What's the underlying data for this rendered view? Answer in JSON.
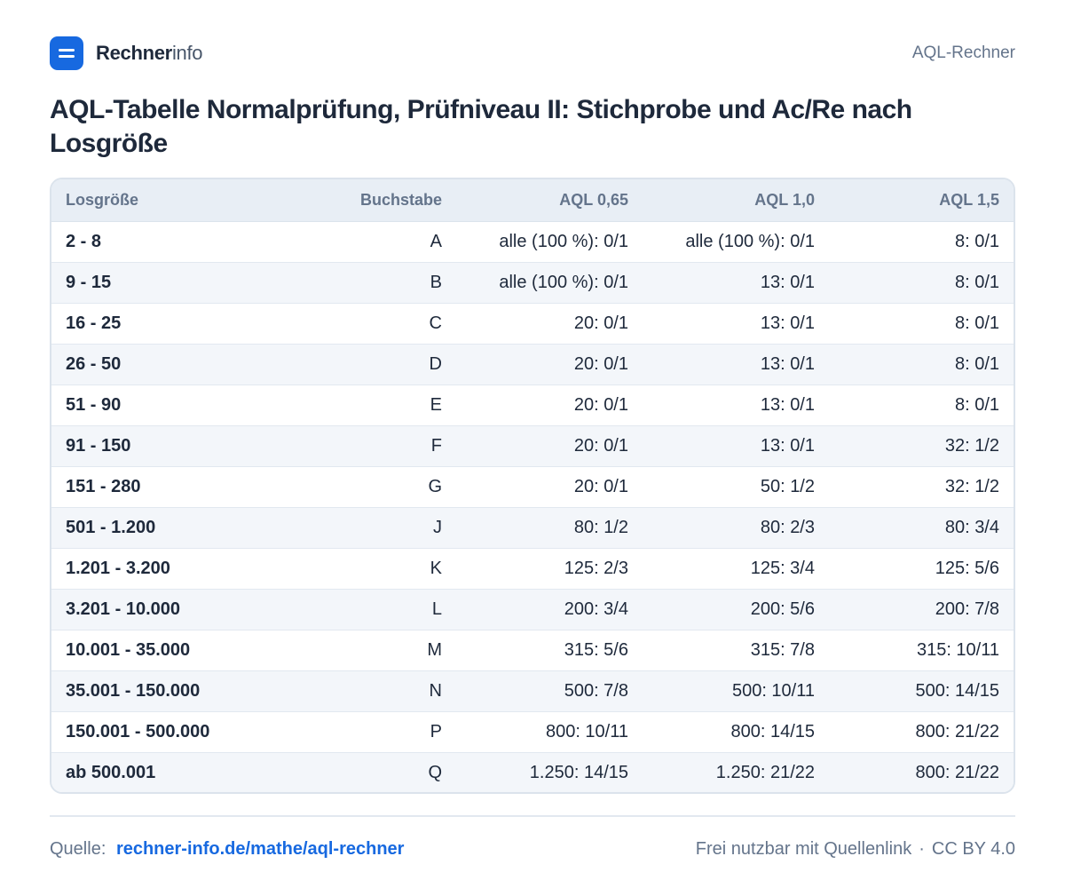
{
  "header": {
    "brand_bold": "Rechner",
    "brand_light": "info",
    "page_label": "AQL-Rechner"
  },
  "title": "AQL-Tabelle  Normalprüfung, Prüfniveau II: Stichprobe und Ac/Re nach Losgröße",
  "table": {
    "columns": [
      "Losgröße",
      "Buchstabe",
      "AQL 0,65",
      "AQL 1,0",
      "AQL 1,5"
    ],
    "rows": [
      [
        "2 - 8",
        "A",
        "alle (100 %): 0/1",
        "alle (100 %): 0/1",
        "8: 0/1"
      ],
      [
        "9 - 15",
        "B",
        "alle (100 %): 0/1",
        "13: 0/1",
        "8: 0/1"
      ],
      [
        "16 - 25",
        "C",
        "20: 0/1",
        "13: 0/1",
        "8: 0/1"
      ],
      [
        "26 - 50",
        "D",
        "20: 0/1",
        "13: 0/1",
        "8: 0/1"
      ],
      [
        "51 - 90",
        "E",
        "20: 0/1",
        "13: 0/1",
        "8: 0/1"
      ],
      [
        "91 - 150",
        "F",
        "20: 0/1",
        "13: 0/1",
        "32: 1/2"
      ],
      [
        "151 - 280",
        "G",
        "20: 0/1",
        "50: 1/2",
        "32: 1/2"
      ],
      [
        "501 - 1.200",
        "J",
        "80: 1/2",
        "80: 2/3",
        "80: 3/4"
      ],
      [
        "1.201 - 3.200",
        "K",
        "125: 2/3",
        "125: 3/4",
        "125: 5/6"
      ],
      [
        "3.201 - 10.000",
        "L",
        "200: 3/4",
        "200: 5/6",
        "200: 7/8"
      ],
      [
        "10.001 - 35.000",
        "M",
        "315: 5/6",
        "315: 7/8",
        "315: 10/11"
      ],
      [
        "35.001 - 150.000",
        "N",
        "500: 7/8",
        "500: 10/11",
        "500: 14/15"
      ],
      [
        "150.001 - 500.000",
        "P",
        "800: 10/11",
        "800: 14/15",
        "800: 21/22"
      ],
      [
        "ab 500.001",
        "Q",
        "1.250: 14/15",
        "1.250: 21/22",
        "800: 21/22"
      ]
    ]
  },
  "footer": {
    "source_label": "Quelle:",
    "source_link": "rechner-info.de/mathe/aql-rechner",
    "license_text": "Frei nutzbar mit Quellenlink",
    "separator": "·",
    "license": "CC BY 4.0"
  },
  "colors": {
    "accent": "#1769e0",
    "header_bg": "#e8eef5",
    "stripe_bg": "#f3f6fa"
  }
}
